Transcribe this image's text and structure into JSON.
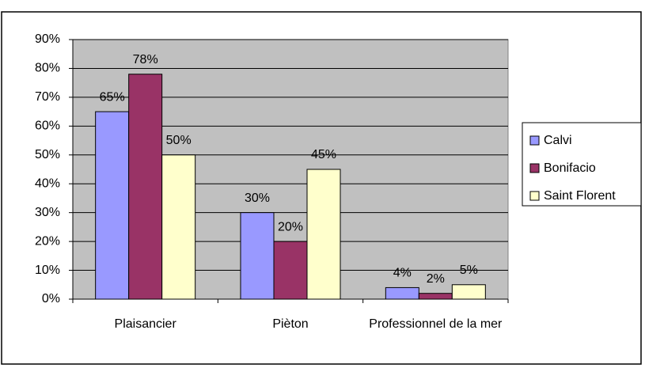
{
  "chart_data": {
    "type": "bar",
    "categories": [
      "Plaisancier",
      "Pièton",
      "Professionnel de la mer"
    ],
    "series": [
      {
        "name": "Calvi",
        "color": "#9999ff",
        "values": [
          65,
          30,
          4
        ],
        "value_labels": [
          "65%",
          "30%",
          "4%"
        ]
      },
      {
        "name": "Bonifacio",
        "color": "#993366",
        "values": [
          78,
          20,
          2
        ],
        "value_labels": [
          "78%",
          "20%",
          "2%"
        ]
      },
      {
        "name": "Saint Florent",
        "color": "#ffffcc",
        "values": [
          50,
          45,
          5
        ],
        "value_labels": [
          "50%",
          "45%",
          "5%"
        ]
      }
    ],
    "ylim": [
      0,
      90
    ],
    "yticks": [
      {
        "value": 0,
        "label": "0%"
      },
      {
        "value": 10,
        "label": "10%"
      },
      {
        "value": 20,
        "label": "20%"
      },
      {
        "value": 30,
        "label": "30%"
      },
      {
        "value": 40,
        "label": "40%"
      },
      {
        "value": 50,
        "label": "50%"
      },
      {
        "value": 60,
        "label": "60%"
      },
      {
        "value": 70,
        "label": "70%"
      },
      {
        "value": 80,
        "label": "80%"
      },
      {
        "value": 90,
        "label": "90%"
      }
    ],
    "grid": true,
    "legend": "right",
    "plot_background": "#c0c0c0"
  }
}
